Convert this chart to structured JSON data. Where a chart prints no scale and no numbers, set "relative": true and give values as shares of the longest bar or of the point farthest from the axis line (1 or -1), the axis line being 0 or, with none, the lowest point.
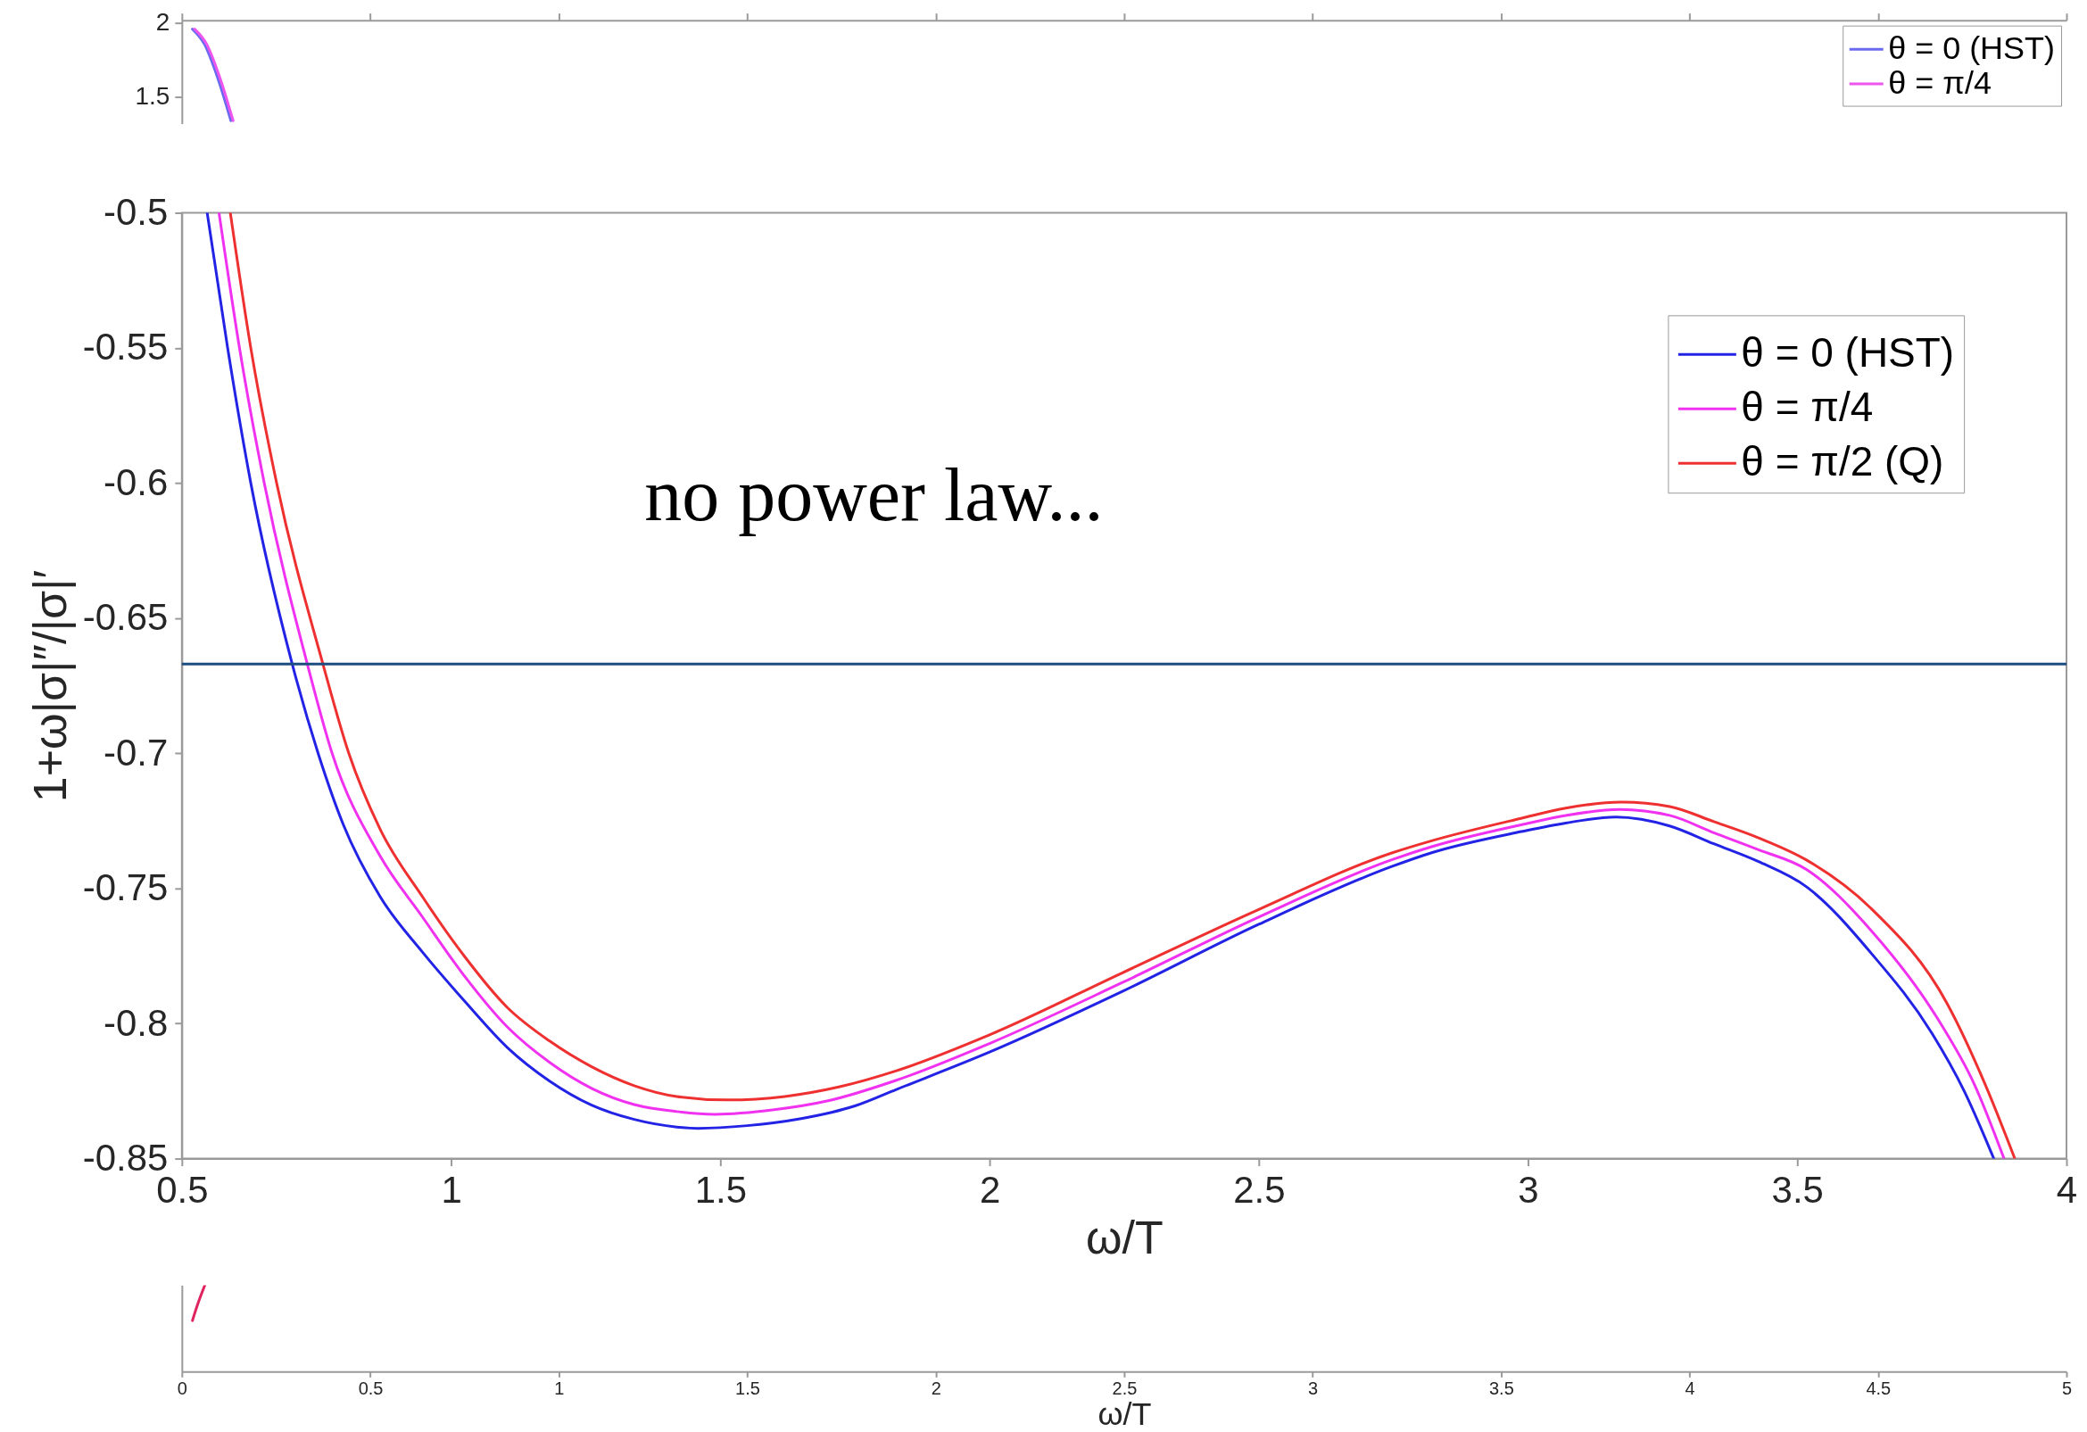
{
  "chart_data": [
    {
      "type": "line",
      "xlim": [
        0,
        5
      ],
      "xticks": [
        0,
        0.5,
        1,
        1.5,
        2,
        2.5,
        3,
        3.5,
        4,
        4.5,
        5
      ],
      "ylim": [
        1.32,
        2.02
      ],
      "yticks": [
        1.5,
        2
      ],
      "tick_labels": "y",
      "legend": "top right",
      "series": [
        {
          "name": "θ = 0 (HST)",
          "color": "#6a6af0",
          "x": [
            0.028,
            0.06,
            0.095,
            0.13
          ],
          "values": [
            1.96,
            1.857,
            1.63,
            1.34
          ]
        },
        {
          "name": "θ = π/4",
          "color": "#ee55ee",
          "x": [
            0.034,
            0.066,
            0.101,
            0.136
          ],
          "values": [
            1.96,
            1.857,
            1.63,
            1.34
          ]
        }
      ]
    },
    {
      "type": "line",
      "xlabel": "ω/T",
      "ylabel": "1+ω|σ|″/|σ|′",
      "xlim": [
        0.5,
        4
      ],
      "xticks": [
        0.5,
        1,
        1.5,
        2,
        2.5,
        3,
        3.5,
        4
      ],
      "ylim": [
        -0.85,
        -0.5
      ],
      "yticks": [
        -0.85,
        -0.8,
        -0.75,
        -0.7,
        -0.65,
        -0.6,
        -0.55,
        -0.5
      ],
      "legend": "top right",
      "ref_lines": [
        {
          "axis": "y",
          "value": -0.667,
          "color": "#1c4d80"
        }
      ],
      "annotations": [
        "no power law..."
      ],
      "series": [
        {
          "name": "θ = 0 (HST)",
          "color": "#2323e6",
          "x": [
            0.547,
            0.585,
            0.628,
            0.705,
            0.753,
            0.8,
            0.868,
            0.9465,
            1.025,
            1.104,
            1.183,
            1.261,
            1.34,
            1.419,
            1.458,
            1.55,
            1.65,
            1.75,
            1.827,
            2.0,
            2.245,
            2.5,
            2.747,
            2.821,
            2.987,
            3.07,
            3.163,
            3.263,
            3.345,
            3.428,
            3.517,
            3.639,
            3.75,
            3.81,
            3.865
          ],
          "values": [
            -0.5,
            -0.55,
            -0.6,
            -0.667,
            -0.7,
            -0.7265,
            -0.753,
            -0.7735,
            -0.7917,
            -0.8088,
            -0.8213,
            -0.8302,
            -0.8355,
            -0.8383,
            -0.8388,
            -0.8378,
            -0.8352,
            -0.8305,
            -0.8244,
            -0.8106,
            -0.7883,
            -0.7633,
            -0.7419,
            -0.7368,
            -0.729,
            -0.7258,
            -0.7236,
            -0.7269,
            -0.7335,
            -0.7401,
            -0.7494,
            -0.7744,
            -0.8036,
            -0.825,
            -0.85
          ]
        },
        {
          "name": "θ = π/4",
          "color": "#f032f0",
          "x": [
            0.569,
            0.607,
            0.653,
            0.733,
            0.779,
            0.868,
            0.9465,
            1.025,
            1.104,
            1.183,
            1.261,
            1.34,
            1.419,
            1.49,
            1.6,
            1.7,
            1.827,
            2.0,
            2.245,
            2.5,
            2.747,
            2.821,
            2.987,
            3.07,
            3.17,
            3.263,
            3.345,
            3.428,
            3.517,
            3.639,
            3.76,
            3.83,
            3.884
          ],
          "values": [
            -0.5,
            -0.55,
            -0.6,
            -0.667,
            -0.7,
            -0.738,
            -0.7605,
            -0.7825,
            -0.8012,
            -0.8144,
            -0.824,
            -0.83,
            -0.8326,
            -0.8336,
            -0.8319,
            -0.8286,
            -0.821,
            -0.8074,
            -0.785,
            -0.7606,
            -0.7394,
            -0.7346,
            -0.7265,
            -0.723,
            -0.7208,
            -0.723,
            -0.7294,
            -0.7357,
            -0.743,
            -0.766,
            -0.798,
            -0.823,
            -0.85
          ]
        },
        {
          "name": "θ = π/2 (Q)",
          "color": "#ee3030",
          "x": [
            0.59,
            0.628,
            0.676,
            0.762,
            0.81,
            0.868,
            0.9465,
            1.025,
            1.104,
            1.183,
            1.261,
            1.34,
            1.419,
            1.513,
            1.62,
            1.72,
            1.827,
            2.0,
            2.245,
            2.5,
            2.747,
            2.821,
            2.987,
            3.07,
            3.174,
            3.263,
            3.345,
            3.428,
            3.517,
            3.639,
            3.778,
            3.85,
            3.904
          ],
          "values": [
            -0.5,
            -0.55,
            -0.6,
            -0.667,
            -0.7,
            -0.728,
            -0.753,
            -0.7752,
            -0.794,
            -0.8065,
            -0.816,
            -0.823,
            -0.827,
            -0.8283,
            -0.827,
            -0.8235,
            -0.8175,
            -0.8042,
            -0.7814,
            -0.7578,
            -0.7369,
            -0.7324,
            -0.7241,
            -0.7203,
            -0.7181,
            -0.7197,
            -0.7253,
            -0.7313,
            -0.7395,
            -0.7578,
            -0.7925,
            -0.823,
            -0.85
          ]
        }
      ]
    },
    {
      "type": "line",
      "xlabel": "ω/T",
      "xlim": [
        0,
        5
      ],
      "xticks": [
        0,
        0.5,
        1,
        1.5,
        2,
        2.5,
        3,
        3.5,
        4,
        4.5,
        5
      ],
      "relative": true,
      "series": [
        {
          "color": "#e0245e",
          "x": [
            0.028,
            0.042,
            0.061
          ],
          "values": [
            0.59,
            0.78,
            1
          ]
        }
      ]
    }
  ]
}
